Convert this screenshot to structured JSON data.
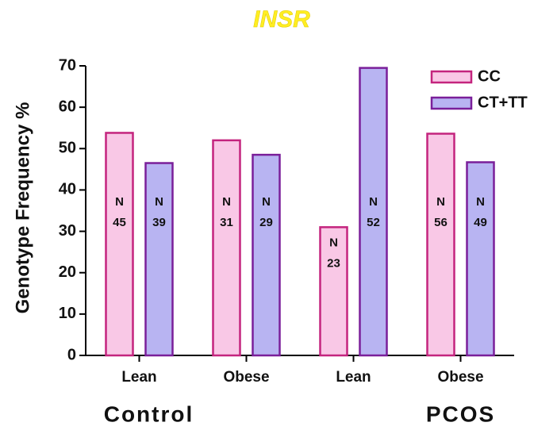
{
  "chart_data": {
    "type": "bar",
    "title": "INSR",
    "y_label": "Genotype Frequency %",
    "categories": [
      "Lean",
      "Obese",
      "Lean",
      "Obese"
    ],
    "groups": [
      "Control",
      "PCOS"
    ],
    "series": [
      {
        "name": "CC",
        "color": "#f9c8e6",
        "edge": "#c4247e",
        "values": [
          53.8,
          52,
          31,
          53.6
        ],
        "n": [
          "45",
          "31",
          "23",
          "56"
        ]
      },
      {
        "name": "CT+TT",
        "color": "#b8b4f2",
        "edge": "#7a1f9a",
        "values": [
          46.5,
          48.5,
          69.5,
          46.7
        ],
        "n": [
          "39",
          "29",
          "52",
          "49"
        ]
      }
    ],
    "n_label": "N",
    "ylim": [
      0,
      70
    ],
    "yticks": [
      0,
      10,
      20,
      30,
      40,
      50,
      60,
      70
    ],
    "legend": "top-right"
  }
}
